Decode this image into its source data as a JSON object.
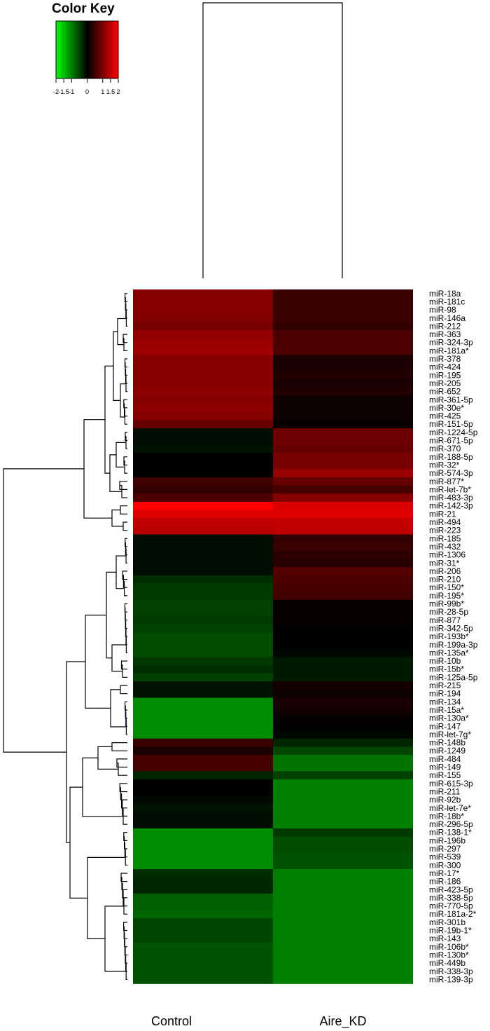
{
  "chart_data": {
    "type": "heatmap",
    "color_key": {
      "title": "Color Key",
      "scale_ticks": [
        "-2",
        "-1.5",
        "-1",
        "0",
        "1",
        "1.5",
        "2"
      ],
      "range": [
        -2,
        2
      ],
      "colors": {
        "low": "#00ff00",
        "mid": "#000000",
        "high": "#ff0000"
      }
    },
    "columns": [
      "Control",
      "Aire_KD"
    ],
    "rows": [
      {
        "name": "miR-18a",
        "values": [
          1.05,
          0.45
        ]
      },
      {
        "name": "miR-181c",
        "values": [
          1.05,
          0.45
        ]
      },
      {
        "name": "miR-98",
        "values": [
          1.05,
          0.45
        ]
      },
      {
        "name": "miR-146a",
        "values": [
          1.0,
          0.45
        ]
      },
      {
        "name": "miR-212",
        "values": [
          0.95,
          0.4
        ]
      },
      {
        "name": "miR-363",
        "values": [
          1.15,
          0.6
        ]
      },
      {
        "name": "miR-324-3p",
        "values": [
          1.2,
          0.6
        ]
      },
      {
        "name": "miR-181a*",
        "values": [
          1.25,
          0.6
        ]
      },
      {
        "name": "miR-378",
        "values": [
          1.05,
          0.2
        ]
      },
      {
        "name": "miR-424",
        "values": [
          1.05,
          0.2
        ]
      },
      {
        "name": "miR-195",
        "values": [
          1.05,
          0.25
        ]
      },
      {
        "name": "miR-205",
        "values": [
          1.05,
          0.2
        ]
      },
      {
        "name": "miR-652",
        "values": [
          1.1,
          0.25
        ]
      },
      {
        "name": "miR-361-5p",
        "values": [
          1.05,
          0.1
        ]
      },
      {
        "name": "miR-30e*",
        "values": [
          1.1,
          0.1
        ]
      },
      {
        "name": "miR-425",
        "values": [
          1.05,
          0.1
        ]
      },
      {
        "name": "miR-151-5p",
        "values": [
          0.8,
          0.05
        ]
      },
      {
        "name": "miR-1224-5p",
        "values": [
          -0.1,
          0.85
        ]
      },
      {
        "name": "miR-671-5p",
        "values": [
          -0.1,
          0.85
        ]
      },
      {
        "name": "miR-370",
        "values": [
          -0.15,
          0.8
        ]
      },
      {
        "name": "miR-188-5p",
        "values": [
          0.0,
          0.95
        ]
      },
      {
        "name": "miR-32*",
        "values": [
          0.0,
          0.95
        ]
      },
      {
        "name": "miR-574-3p",
        "values": [
          0.0,
          1.2
        ]
      },
      {
        "name": "miR-877*",
        "values": [
          0.5,
          0.8
        ]
      },
      {
        "name": "miR-let-7b*",
        "values": [
          0.4,
          0.55
        ]
      },
      {
        "name": "miR-483-3p",
        "values": [
          0.6,
          1.05
        ]
      },
      {
        "name": "miR-142-3p",
        "values": [
          2.0,
          1.7
        ]
      },
      {
        "name": "miR-21",
        "values": [
          1.75,
          1.75
        ]
      },
      {
        "name": "miR-494",
        "values": [
          1.5,
          1.55
        ]
      },
      {
        "name": "miR-223",
        "values": [
          1.45,
          1.5
        ]
      },
      {
        "name": "miR-185",
        "values": [
          -0.1,
          0.4
        ]
      },
      {
        "name": "miR-432",
        "values": [
          -0.1,
          0.45
        ]
      },
      {
        "name": "miR-1306",
        "values": [
          -0.1,
          0.35
        ]
      },
      {
        "name": "miR-31*",
        "values": [
          -0.1,
          0.3
        ]
      },
      {
        "name": "miR-206",
        "values": [
          -0.1,
          0.65
        ]
      },
      {
        "name": "miR-210",
        "values": [
          -0.35,
          0.6
        ]
      },
      {
        "name": "miR-150*",
        "values": [
          -0.45,
          0.55
        ]
      },
      {
        "name": "miR-195*",
        "values": [
          -0.45,
          0.5
        ]
      },
      {
        "name": "miR-99b*",
        "values": [
          -0.5,
          0.05
        ]
      },
      {
        "name": "miR-28-5p",
        "values": [
          -0.5,
          0.05
        ]
      },
      {
        "name": "miR-877",
        "values": [
          -0.45,
          0.05
        ]
      },
      {
        "name": "miR-342-5p",
        "values": [
          -0.5,
          0.0
        ]
      },
      {
        "name": "miR-193b*",
        "values": [
          -0.6,
          0.0
        ]
      },
      {
        "name": "miR-199a-3p",
        "values": [
          -0.6,
          0.0
        ]
      },
      {
        "name": "miR-135a*",
        "values": [
          -0.6,
          -0.05
        ]
      },
      {
        "name": "miR-10b",
        "values": [
          -0.45,
          -0.2
        ]
      },
      {
        "name": "miR-15b*",
        "values": [
          -0.35,
          -0.2
        ]
      },
      {
        "name": "miR-125a-5p",
        "values": [
          -0.5,
          -0.2
        ]
      },
      {
        "name": "miR-215",
        "values": [
          -0.15,
          0.15
        ]
      },
      {
        "name": "miR-194",
        "values": [
          -0.15,
          0.1
        ]
      },
      {
        "name": "miR-134",
        "values": [
          -1.1,
          0.2
        ]
      },
      {
        "name": "miR-15a*",
        "values": [
          -1.1,
          0.15
        ]
      },
      {
        "name": "miR-130a*",
        "values": [
          -1.1,
          0.05
        ]
      },
      {
        "name": "miR-147",
        "values": [
          -1.1,
          0.0
        ]
      },
      {
        "name": "miR-let-7g*",
        "values": [
          -1.1,
          -0.05
        ]
      },
      {
        "name": "miR-148b",
        "values": [
          0.45,
          -0.3
        ]
      },
      {
        "name": "miR-1249",
        "values": [
          0.2,
          -0.55
        ]
      },
      {
        "name": "miR-484",
        "values": [
          0.55,
          -0.9
        ]
      },
      {
        "name": "miR-149",
        "values": [
          0.55,
          -0.9
        ]
      },
      {
        "name": "miR-155",
        "values": [
          -0.3,
          -0.5
        ]
      },
      {
        "name": "miR-615-3p",
        "values": [
          0.0,
          -1.0
        ]
      },
      {
        "name": "miR-211",
        "values": [
          0.0,
          -1.0
        ]
      },
      {
        "name": "miR-92b",
        "values": [
          -0.05,
          -1.0
        ]
      },
      {
        "name": "miR-let-7e*",
        "values": [
          -0.15,
          -1.0
        ]
      },
      {
        "name": "miR-18b*",
        "values": [
          -0.1,
          -1.0
        ]
      },
      {
        "name": "miR-296-5p",
        "values": [
          -0.1,
          -1.0
        ]
      },
      {
        "name": "miR-138-1*",
        "values": [
          -1.1,
          -0.45
        ]
      },
      {
        "name": "miR-196b",
        "values": [
          -1.1,
          -0.6
        ]
      },
      {
        "name": "miR-297",
        "values": [
          -1.1,
          -0.6
        ]
      },
      {
        "name": "miR-539",
        "values": [
          -1.1,
          -0.65
        ]
      },
      {
        "name": "miR-300",
        "values": [
          -1.1,
          -0.65
        ]
      },
      {
        "name": "miR-17*",
        "values": [
          -0.35,
          -1.0
        ]
      },
      {
        "name": "miR-186",
        "values": [
          -0.3,
          -1.0
        ]
      },
      {
        "name": "miR-423-5p",
        "values": [
          -0.3,
          -1.0
        ]
      },
      {
        "name": "miR-338-5p",
        "values": [
          -0.75,
          -1.0
        ]
      },
      {
        "name": "miR-770-5p",
        "values": [
          -0.75,
          -1.0
        ]
      },
      {
        "name": "miR-181a-2*",
        "values": [
          -0.8,
          -1.0
        ]
      },
      {
        "name": "miR-301b",
        "values": [
          -0.55,
          -1.0
        ]
      },
      {
        "name": "miR-19b-1*",
        "values": [
          -0.55,
          -1.0
        ]
      },
      {
        "name": "miR-143",
        "values": [
          -0.55,
          -1.0
        ]
      },
      {
        "name": "miR-106b*",
        "values": [
          -0.65,
          -1.0
        ]
      },
      {
        "name": "miR-130b*",
        "values": [
          -0.65,
          -1.0
        ]
      },
      {
        "name": "miR-449b",
        "values": [
          -0.65,
          -1.0
        ]
      },
      {
        "name": "miR-338-3p",
        "values": [
          -0.65,
          -1.0
        ]
      },
      {
        "name": "miR-139-3p",
        "values": [
          -0.65,
          -1.0
        ]
      }
    ],
    "row_dendrogram": true,
    "column_dendrogram": true,
    "legend_placement": "top-left"
  }
}
